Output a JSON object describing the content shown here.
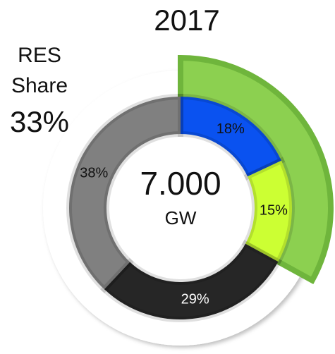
{
  "chart_data": {
    "type": "donut",
    "title": "2017",
    "categories": [
      null,
      null,
      null,
      null
    ],
    "values": [
      18,
      15,
      29,
      38
    ],
    "value_labels": [
      "18%",
      "15%",
      "29%",
      "38%"
    ],
    "colors": [
      "#0a52f0",
      "#ccff33",
      "#262626",
      "#808080"
    ],
    "center": {
      "value": 7000,
      "label": "7.000",
      "unit": "GW"
    },
    "highlight": {
      "label": [
        "RES",
        "Share"
      ],
      "value": 33,
      "value_label": "33%",
      "color": "#8cd050"
    }
  }
}
